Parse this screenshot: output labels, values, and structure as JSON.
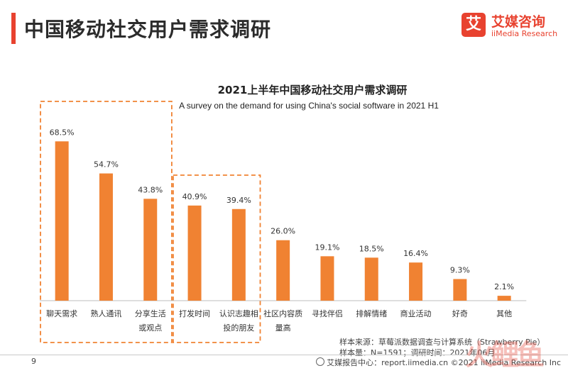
{
  "header": {
    "title": "中国移动社交用户需求调研",
    "accent_color": "#e8422f"
  },
  "logo": {
    "mark": "艾",
    "name": "艾媒咨询",
    "sub": "iiMedia Research",
    "color": "#e8422f"
  },
  "chart_data": {
    "type": "bar",
    "title": "2021上半年中国移动社交用户需求调研",
    "subtitle": "A survey on the demand for using China's  social software in 2021 H1",
    "categories": [
      "聊天需求",
      "熟人通讯",
      "分享生活或观点",
      "打发时间",
      "认识志趣相投的朋友",
      "社区内容质量高",
      "寻找伴侣",
      "排解情绪",
      "商业活动",
      "好奇",
      "其他"
    ],
    "category_lines": [
      [
        "聊天需求"
      ],
      [
        "熟人通讯"
      ],
      [
        "分享生活",
        "或观点"
      ],
      [
        "打发时间"
      ],
      [
        "认识志趣相",
        "投的朋友"
      ],
      [
        "社区内容质",
        "量高"
      ],
      [
        "寻找伴侣"
      ],
      [
        "排解情绪"
      ],
      [
        "商业活动"
      ],
      [
        "好奇"
      ],
      [
        "其他"
      ]
    ],
    "values": [
      68.5,
      54.7,
      43.8,
      40.9,
      39.4,
      26.0,
      19.1,
      18.5,
      16.4,
      9.3,
      2.1
    ],
    "labels": [
      "68.5%",
      "54.7%",
      "43.8%",
      "40.9%",
      "39.4%",
      "26.0%",
      "19.1%",
      "18.5%",
      "16.4%",
      "9.3%",
      "2.1%"
    ],
    "unit": "%",
    "bar_color": "#f08232",
    "highlight_color": "#f08232",
    "highlight_groups": [
      [
        0,
        2
      ],
      [
        3,
        4
      ]
    ],
    "ylim": [
      0,
      75
    ],
    "grid": false,
    "legend": "none"
  },
  "footer": {
    "source": "样本来源：草莓派数据调查与计算系统（Strawberry Pie）",
    "sample": "样本量：N=1591；调研时间：2021年06月",
    "page_number": "9",
    "site": "艾媒报告中心：report.iimedia.cn ©2021  iiMedia Research  Inc",
    "watermark": "火鲤鱼"
  }
}
